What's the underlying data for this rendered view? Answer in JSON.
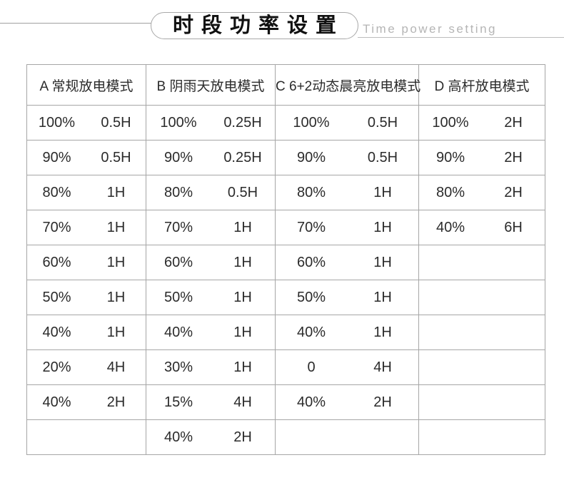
{
  "header": {
    "title": "时段功率设置",
    "subtitle": "Time power setting"
  },
  "colors": {
    "table_border": "#a6a6a6",
    "text": "#2b2b2b",
    "subtitle_gray": "#b5b5b5",
    "background": "#ffffff"
  },
  "table": {
    "columns": [
      {
        "label": "A  常规放电模式",
        "rows": [
          [
            "100%",
            "0.5H"
          ],
          [
            "90%",
            "0.5H"
          ],
          [
            "80%",
            "1H"
          ],
          [
            "70%",
            "1H"
          ],
          [
            "60%",
            "1H"
          ],
          [
            "50%",
            "1H"
          ],
          [
            "40%",
            "1H"
          ],
          [
            "20%",
            "4H"
          ],
          [
            "40%",
            "2H"
          ],
          [
            "",
            ""
          ]
        ]
      },
      {
        "label": "B  阴雨天放电模式",
        "rows": [
          [
            "100%",
            "0.25H"
          ],
          [
            "90%",
            "0.25H"
          ],
          [
            "80%",
            "0.5H"
          ],
          [
            "70%",
            "1H"
          ],
          [
            "60%",
            "1H"
          ],
          [
            "50%",
            "1H"
          ],
          [
            "40%",
            "1H"
          ],
          [
            "30%",
            "1H"
          ],
          [
            "15%",
            "4H"
          ],
          [
            "40%",
            "2H"
          ]
        ]
      },
      {
        "label": "C 6+2动态晨亮放电模式",
        "rows": [
          [
            "100%",
            "0.5H"
          ],
          [
            "90%",
            "0.5H"
          ],
          [
            "80%",
            "1H"
          ],
          [
            "70%",
            "1H"
          ],
          [
            "60%",
            "1H"
          ],
          [
            "50%",
            "1H"
          ],
          [
            "40%",
            "1H"
          ],
          [
            "0",
            "4H"
          ],
          [
            "40%",
            "2H"
          ],
          [
            "",
            ""
          ]
        ]
      },
      {
        "label": "D 高杆放电模式",
        "rows": [
          [
            "100%",
            "2H"
          ],
          [
            "90%",
            "2H"
          ],
          [
            "80%",
            "2H"
          ],
          [
            "40%",
            "6H"
          ],
          [
            "",
            ""
          ],
          [
            "",
            ""
          ],
          [
            "",
            ""
          ],
          [
            "",
            ""
          ],
          [
            "",
            ""
          ],
          [
            "",
            ""
          ]
        ]
      }
    ]
  }
}
